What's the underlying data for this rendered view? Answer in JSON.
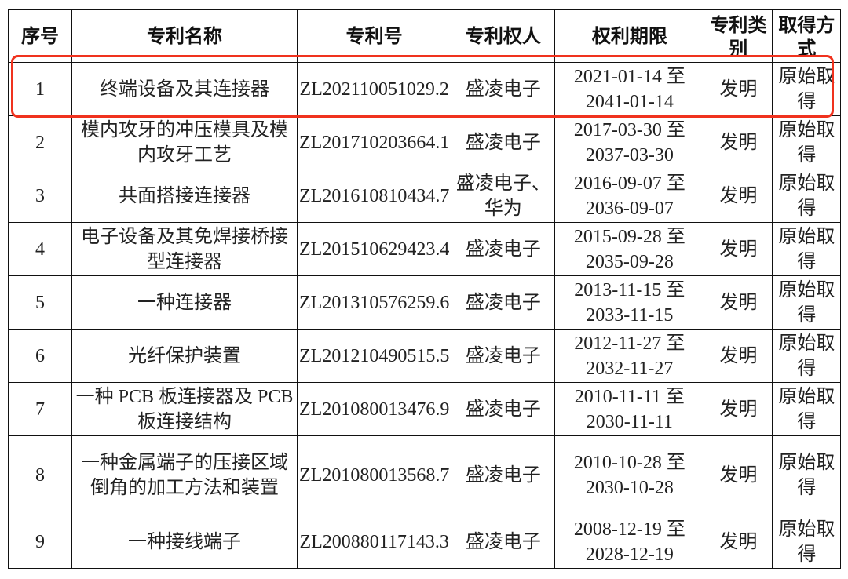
{
  "headers": [
    "序号",
    "专利名称",
    "专利号",
    "专利权人",
    "权利期限",
    "专利类别",
    "取得方式"
  ],
  "rows": [
    {
      "no": "1",
      "name": "终端设备及其连接器",
      "patent_no": "ZL202110051029.2",
      "owner": "盛凌电子",
      "term": "2021-01-14 至 2041-01-14",
      "type": "发明",
      "acquisition": "原始取得"
    },
    {
      "no": "2",
      "name": "模内攻牙的冲压模具及模内攻牙工艺",
      "patent_no": "ZL201710203664.1",
      "owner": "盛凌电子",
      "term": "2017-03-30 至 2037-03-30",
      "type": "发明",
      "acquisition": "原始取得"
    },
    {
      "no": "3",
      "name": "共面搭接连接器",
      "patent_no": "ZL201610810434.7",
      "owner": "盛凌电子、华为",
      "term": "2016-09-07 至 2036-09-07",
      "type": "发明",
      "acquisition": "原始取得"
    },
    {
      "no": "4",
      "name": "电子设备及其免焊接桥接型连接器",
      "patent_no": "ZL201510629423.4",
      "owner": "盛凌电子",
      "term": "2015-09-28 至 2035-09-28",
      "type": "发明",
      "acquisition": "原始取得"
    },
    {
      "no": "5",
      "name": "一种连接器",
      "patent_no": "ZL201310576259.6",
      "owner": "盛凌电子",
      "term": "2013-11-15 至 2033-11-15",
      "type": "发明",
      "acquisition": "原始取得"
    },
    {
      "no": "6",
      "name": "光纤保护装置",
      "patent_no": "ZL201210490515.5",
      "owner": "盛凌电子",
      "term": "2012-11-27 至 2032-11-27",
      "type": "发明",
      "acquisition": "原始取得"
    },
    {
      "no": "7",
      "name": "一种 PCB 板连接器及 PCB 板连接结构",
      "patent_no": "ZL201080013476.9",
      "owner": "盛凌电子",
      "term": "2010-11-11 至 2030-11-11",
      "type": "发明",
      "acquisition": "原始取得"
    },
    {
      "no": "8",
      "name": "一种金属端子的压接区域倒角的加工方法和装置",
      "patent_no": "ZL201080013568.7",
      "owner": "盛凌电子",
      "term": "2010-10-28 至 2030-10-28",
      "type": "发明",
      "acquisition": "原始取得"
    },
    {
      "no": "9",
      "name": "一种接线端子",
      "patent_no": "ZL200880117143.3",
      "owner": "盛凌电子",
      "term": "2008-12-19 至 2028-12-19",
      "type": "发明",
      "acquisition": "原始取得"
    }
  ],
  "highlight_color": "#f0321e"
}
